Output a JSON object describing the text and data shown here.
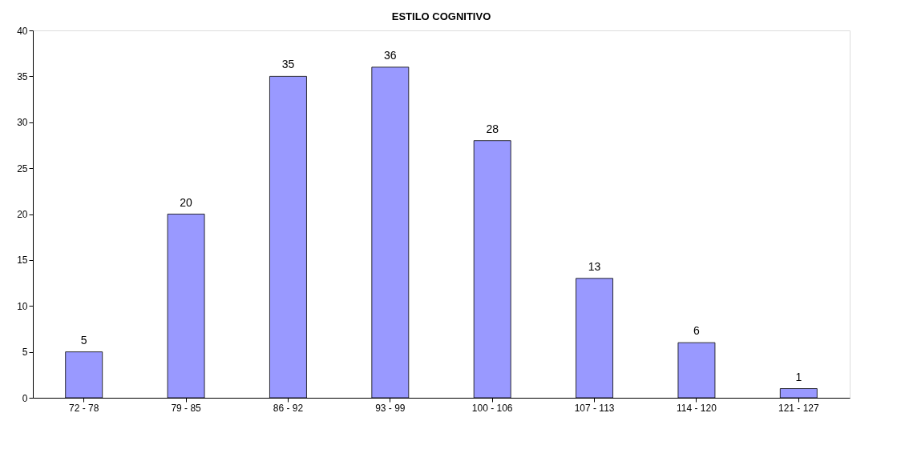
{
  "chart_data": {
    "type": "bar",
    "title": "ESTILO COGNITIVO",
    "categories": [
      "72 - 78",
      "79 - 85",
      "86 - 92",
      "93 - 99",
      "100 - 106",
      "107 - 113",
      "114 - 120",
      "121 - 127"
    ],
    "values": [
      5,
      20,
      35,
      36,
      28,
      13,
      6,
      1
    ],
    "color": "#9999ff",
    "ylim": [
      0,
      40
    ],
    "yticks": [
      0,
      5,
      10,
      15,
      20,
      25,
      30,
      35,
      40
    ],
    "data_labels": true,
    "grid": false
  }
}
